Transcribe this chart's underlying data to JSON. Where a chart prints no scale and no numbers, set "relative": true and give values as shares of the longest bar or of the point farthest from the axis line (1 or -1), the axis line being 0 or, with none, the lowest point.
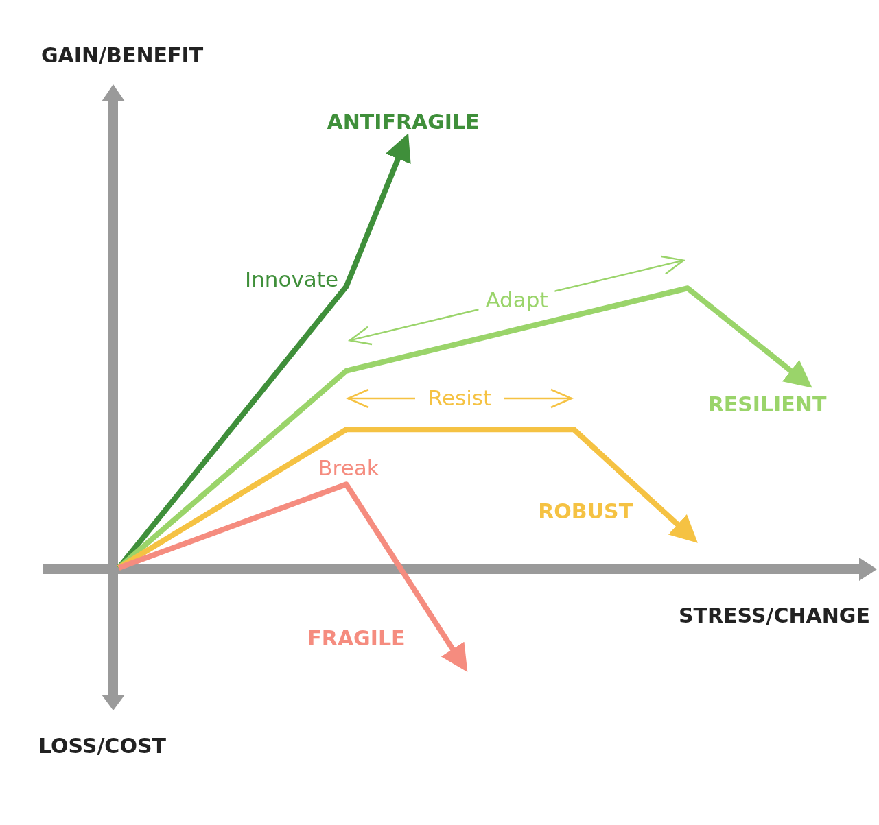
{
  "chart_data": {
    "type": "line",
    "relative": true,
    "ylabel": "GAIN/BENEFIT",
    "xlabel": "STRESS/CHANGE",
    "categories": [
      null,
      null,
      null,
      null,
      null,
      null,
      null,
      null,
      null,
      null,
      null,
      null,
      null
    ],
    "series": [
      {
        "name": "ANTIFRAGILE",
        "color": "#3f8f3a",
        "values": [
          0,
          null,
          null,
          null,
          0.667,
          1,
          null,
          null,
          null,
          null,
          null,
          null,
          null
        ]
      },
      {
        "name": "RESILIENT",
        "color": "#9ad46a",
        "values": [
          0,
          null,
          null,
          null,
          0.467,
          null,
          null,
          null,
          null,
          null,
          0.663,
          null,
          0.447
        ]
      },
      {
        "name": "ROBUST",
        "color": "#f5c243",
        "values": [
          0,
          null,
          null,
          null,
          0.328,
          null,
          null,
          null,
          0.328,
          null,
          0.081,
          null,
          null
        ]
      },
      {
        "name": "FRAGILE",
        "color": "#f58c7f",
        "values": [
          0,
          null,
          null,
          null,
          0.198,
          null,
          -0.22,
          null,
          null,
          null,
          null,
          null,
          null
        ]
      }
    ],
    "annotations": [
      "Innovate",
      "Adapt",
      "Resist",
      "Break",
      "LOSS/COST"
    ],
    "marker": "none",
    "line_style": "solid"
  }
}
